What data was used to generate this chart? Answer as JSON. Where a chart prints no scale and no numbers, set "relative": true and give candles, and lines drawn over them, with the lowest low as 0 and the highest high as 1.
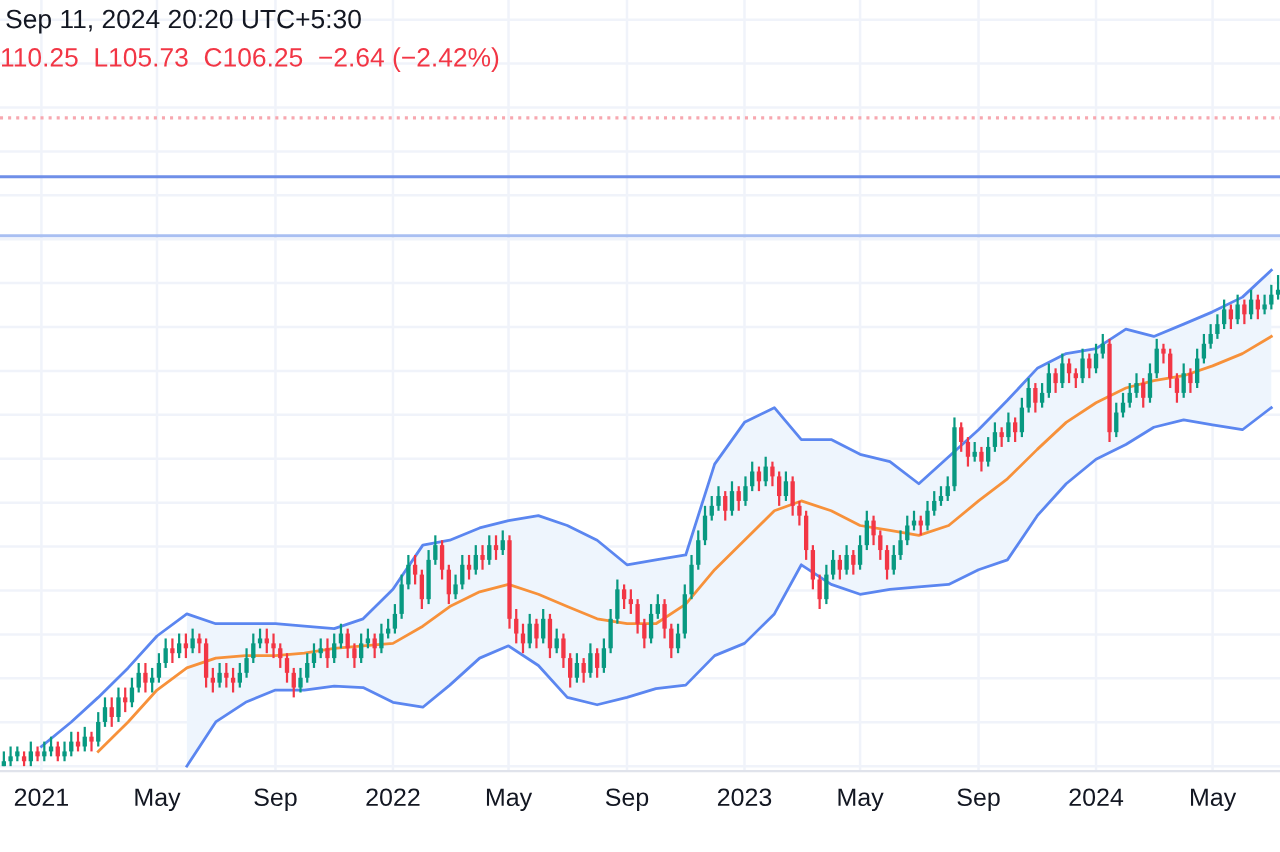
{
  "chart_data": {
    "type": "candlestick",
    "relative": true,
    "annotations": [
      "Sep 11, 2024 20:20 UTC+5:30",
      "110.25  L105.73  C106.25  −2.64 (−2.42%)"
    ],
    "x": [
      "2020-11-23",
      "2020-11-30",
      "2020-12-07",
      "2020-12-14",
      "2020-12-21",
      "2020-12-28",
      "2021-01-04",
      "2021-01-11",
      "2021-01-18",
      "2021-01-25",
      "2021-02-01",
      "2021-02-08",
      "2021-02-15",
      "2021-02-22",
      "2021-03-01",
      "2021-03-08",
      "2021-03-15",
      "2021-03-22",
      "2021-03-29",
      "2021-04-05",
      "2021-04-12",
      "2021-04-19",
      "2021-04-26",
      "2021-05-03",
      "2021-05-10",
      "2021-05-17",
      "2021-05-24",
      "2021-05-31",
      "2021-06-07",
      "2021-06-14",
      "2021-06-21",
      "2021-06-28",
      "2021-07-05",
      "2021-07-12",
      "2021-07-19",
      "2021-07-26",
      "2021-08-02",
      "2021-08-09",
      "2021-08-16",
      "2021-08-23",
      "2021-08-30",
      "2021-09-06",
      "2021-09-13",
      "2021-09-20",
      "2021-09-27",
      "2021-10-04",
      "2021-10-11",
      "2021-10-18",
      "2021-10-25",
      "2021-11-01",
      "2021-11-08",
      "2021-11-15",
      "2021-11-22",
      "2021-11-29",
      "2021-12-06",
      "2021-12-13",
      "2021-12-20",
      "2021-12-27",
      "2022-01-03",
      "2022-01-10",
      "2022-01-17",
      "2022-01-24",
      "2022-01-31",
      "2022-02-07",
      "2022-02-14",
      "2022-02-21",
      "2022-02-28",
      "2022-03-07",
      "2022-03-14",
      "2022-03-21",
      "2022-03-28",
      "2022-04-04",
      "2022-04-11",
      "2022-04-18",
      "2022-04-25",
      "2022-05-02",
      "2022-05-09",
      "2022-05-16",
      "2022-05-23",
      "2022-05-30",
      "2022-06-06",
      "2022-06-13",
      "2022-06-20",
      "2022-06-27",
      "2022-07-04",
      "2022-07-11",
      "2022-07-18",
      "2022-07-25",
      "2022-08-01",
      "2022-08-08",
      "2022-08-15",
      "2022-08-22",
      "2022-08-29",
      "2022-09-05",
      "2022-09-12",
      "2022-09-19",
      "2022-09-26",
      "2022-10-03",
      "2022-10-10",
      "2022-10-17",
      "2022-10-24",
      "2022-10-31",
      "2022-11-07",
      "2022-11-14",
      "2022-11-21",
      "2022-11-28",
      "2022-12-05",
      "2022-12-12",
      "2022-12-19",
      "2022-12-26",
      "2023-01-02",
      "2023-01-09",
      "2023-01-16",
      "2023-01-23",
      "2023-01-30",
      "2023-02-06",
      "2023-02-13",
      "2023-02-20",
      "2023-02-27",
      "2023-03-06",
      "2023-03-13",
      "2023-03-20",
      "2023-03-27",
      "2023-04-03",
      "2023-04-10",
      "2023-04-17",
      "2023-04-24",
      "2023-05-01",
      "2023-05-08",
      "2023-05-15",
      "2023-05-22",
      "2023-05-29",
      "2023-06-05",
      "2023-06-12",
      "2023-06-19",
      "2023-06-26",
      "2023-07-03",
      "2023-07-10",
      "2023-07-17",
      "2023-07-24",
      "2023-07-31",
      "2023-08-07",
      "2023-08-14",
      "2023-08-21",
      "2023-08-28",
      "2023-09-04",
      "2023-09-11",
      "2023-09-18",
      "2023-09-25",
      "2023-10-02",
      "2023-10-09",
      "2023-10-16",
      "2023-10-23",
      "2023-10-30",
      "2023-11-06",
      "2023-11-13",
      "2023-11-20",
      "2023-11-27",
      "2023-12-04",
      "2023-12-11",
      "2023-12-18",
      "2023-12-25",
      "2024-01-01",
      "2024-01-08",
      "2024-01-15",
      "2024-01-22",
      "2024-01-29",
      "2024-02-05",
      "2024-02-12",
      "2024-02-19",
      "2024-02-26",
      "2024-03-04",
      "2024-03-11",
      "2024-03-18",
      "2024-03-25",
      "2024-04-01",
      "2024-04-08",
      "2024-04-15",
      "2024-04-22",
      "2024-04-29",
      "2024-05-06",
      "2024-05-13",
      "2024-05-20",
      "2024-05-27",
      "2024-06-03",
      "2024-06-10",
      "2024-06-17",
      "2024-06-24",
      "2024-07-01",
      "2024-07-08"
    ],
    "ohlc": [
      [
        0,
        0.03,
        0,
        0.01
      ],
      [
        0.01,
        0.04,
        0,
        0.02
      ],
      [
        0.02,
        0.04,
        0.01,
        0.03
      ],
      [
        0.02,
        0.03,
        0,
        0.01
      ],
      [
        0.01,
        0.05,
        0,
        0.03
      ],
      [
        0.03,
        0.04,
        0.01,
        0.02
      ],
      [
        0.02,
        0.05,
        0.01,
        0.03
      ],
      [
        0.03,
        0.06,
        0.02,
        0.04
      ],
      [
        0.04,
        0.05,
        0.01,
        0.02
      ],
      [
        0.02,
        0.05,
        0.01,
        0.03
      ],
      [
        0.03,
        0.07,
        0.02,
        0.05
      ],
      [
        0.05,
        0.07,
        0.03,
        0.04
      ],
      [
        0.04,
        0.08,
        0.03,
        0.06
      ],
      [
        0.06,
        0.07,
        0.03,
        0.05
      ],
      [
        0.05,
        0.11,
        0.04,
        0.09
      ],
      [
        0.09,
        0.14,
        0.08,
        0.12
      ],
      [
        0.12,
        0.14,
        0.08,
        0.1
      ],
      [
        0.1,
        0.16,
        0.09,
        0.14
      ],
      [
        0.14,
        0.16,
        0.11,
        0.13
      ],
      [
        0.13,
        0.18,
        0.12,
        0.16
      ],
      [
        0.16,
        0.21,
        0.15,
        0.19
      ],
      [
        0.19,
        0.21,
        0.15,
        0.17
      ],
      [
        0.17,
        0.2,
        0.15,
        0.18
      ],
      [
        0.18,
        0.23,
        0.17,
        0.21
      ],
      [
        0.21,
        0.26,
        0.2,
        0.24
      ],
      [
        0.24,
        0.26,
        0.21,
        0.23
      ],
      [
        0.23,
        0.27,
        0.22,
        0.25
      ],
      [
        0.25,
        0.27,
        0.22,
        0.24
      ],
      [
        0.24,
        0.28,
        0.23,
        0.26
      ],
      [
        0.26,
        0.27,
        0.23,
        0.25
      ],
      [
        0.25,
        0.26,
        0.16,
        0.18
      ],
      [
        0.18,
        0.2,
        0.15,
        0.17
      ],
      [
        0.17,
        0.21,
        0.16,
        0.19
      ],
      [
        0.19,
        0.21,
        0.16,
        0.18
      ],
      [
        0.18,
        0.2,
        0.15,
        0.17
      ],
      [
        0.17,
        0.21,
        0.16,
        0.19
      ],
      [
        0.19,
        0.24,
        0.18,
        0.22
      ],
      [
        0.22,
        0.27,
        0.21,
        0.25
      ],
      [
        0.25,
        0.28,
        0.24,
        0.26
      ],
      [
        0.26,
        0.28,
        0.23,
        0.25
      ],
      [
        0.25,
        0.27,
        0.22,
        0.24
      ],
      [
        0.24,
        0.25,
        0.2,
        0.22
      ],
      [
        0.22,
        0.23,
        0.17,
        0.19
      ],
      [
        0.19,
        0.2,
        0.14,
        0.16
      ],
      [
        0.16,
        0.2,
        0.15,
        0.18
      ],
      [
        0.18,
        0.23,
        0.17,
        0.21
      ],
      [
        0.21,
        0.25,
        0.2,
        0.23
      ],
      [
        0.23,
        0.26,
        0.22,
        0.24
      ],
      [
        0.24,
        0.26,
        0.2,
        0.22
      ],
      [
        0.22,
        0.27,
        0.21,
        0.25
      ],
      [
        0.25,
        0.29,
        0.24,
        0.27
      ],
      [
        0.27,
        0.28,
        0.22,
        0.24
      ],
      [
        0.24,
        0.25,
        0.2,
        0.22
      ],
      [
        0.22,
        0.27,
        0.21,
        0.25
      ],
      [
        0.25,
        0.28,
        0.24,
        0.26
      ],
      [
        0.26,
        0.27,
        0.22,
        0.24
      ],
      [
        0.24,
        0.29,
        0.23,
        0.27
      ],
      [
        0.27,
        0.3,
        0.26,
        0.28
      ],
      [
        0.28,
        0.33,
        0.27,
        0.31
      ],
      [
        0.31,
        0.39,
        0.3,
        0.37
      ],
      [
        0.37,
        0.43,
        0.36,
        0.41
      ],
      [
        0.41,
        0.43,
        0.37,
        0.39
      ],
      [
        0.39,
        0.4,
        0.32,
        0.34
      ],
      [
        0.34,
        0.44,
        0.33,
        0.42
      ],
      [
        0.42,
        0.47,
        0.41,
        0.45
      ],
      [
        0.45,
        0.46,
        0.38,
        0.4
      ],
      [
        0.4,
        0.41,
        0.33,
        0.35
      ],
      [
        0.35,
        0.39,
        0.34,
        0.37
      ],
      [
        0.37,
        0.43,
        0.36,
        0.41
      ],
      [
        0.41,
        0.43,
        0.38,
        0.4
      ],
      [
        0.4,
        0.45,
        0.39,
        0.43
      ],
      [
        0.43,
        0.45,
        0.4,
        0.42
      ],
      [
        0.42,
        0.47,
        0.41,
        0.45
      ],
      [
        0.45,
        0.47,
        0.42,
        0.44
      ],
      [
        0.44,
        0.48,
        0.43,
        0.46
      ],
      [
        0.46,
        0.47,
        0.28,
        0.3
      ],
      [
        0.3,
        0.32,
        0.25,
        0.27
      ],
      [
        0.27,
        0.29,
        0.23,
        0.25
      ],
      [
        0.25,
        0.31,
        0.24,
        0.29
      ],
      [
        0.29,
        0.3,
        0.24,
        0.26
      ],
      [
        0.26,
        0.32,
        0.25,
        0.3
      ],
      [
        0.3,
        0.31,
        0.22,
        0.24
      ],
      [
        0.24,
        0.28,
        0.23,
        0.26
      ],
      [
        0.26,
        0.27,
        0.2,
        0.22
      ],
      [
        0.22,
        0.23,
        0.16,
        0.18
      ],
      [
        0.18,
        0.23,
        0.17,
        0.21
      ],
      [
        0.21,
        0.22,
        0.17,
        0.19
      ],
      [
        0.19,
        0.25,
        0.18,
        0.23
      ],
      [
        0.23,
        0.24,
        0.18,
        0.2
      ],
      [
        0.2,
        0.26,
        0.19,
        0.24
      ],
      [
        0.24,
        0.32,
        0.23,
        0.3
      ],
      [
        0.3,
        0.38,
        0.29,
        0.36
      ],
      [
        0.36,
        0.37,
        0.32,
        0.34
      ],
      [
        0.34,
        0.36,
        0.31,
        0.33
      ],
      [
        0.33,
        0.34,
        0.27,
        0.29
      ],
      [
        0.29,
        0.3,
        0.24,
        0.26
      ],
      [
        0.26,
        0.33,
        0.25,
        0.31
      ],
      [
        0.31,
        0.35,
        0.3,
        0.33
      ],
      [
        0.33,
        0.34,
        0.26,
        0.28
      ],
      [
        0.28,
        0.29,
        0.22,
        0.24
      ],
      [
        0.24,
        0.29,
        0.23,
        0.27
      ],
      [
        0.27,
        0.37,
        0.26,
        0.35
      ],
      [
        0.35,
        0.43,
        0.34,
        0.41
      ],
      [
        0.41,
        0.48,
        0.4,
        0.46
      ],
      [
        0.46,
        0.53,
        0.45,
        0.51
      ],
      [
        0.51,
        0.55,
        0.5,
        0.53
      ],
      [
        0.53,
        0.57,
        0.52,
        0.55
      ],
      [
        0.55,
        0.56,
        0.5,
        0.52
      ],
      [
        0.52,
        0.58,
        0.51,
        0.56
      ],
      [
        0.56,
        0.57,
        0.52,
        0.54
      ],
      [
        0.54,
        0.59,
        0.53,
        0.57
      ],
      [
        0.57,
        0.62,
        0.56,
        0.6
      ],
      [
        0.6,
        0.61,
        0.56,
        0.58
      ],
      [
        0.58,
        0.63,
        0.57,
        0.61
      ],
      [
        0.61,
        0.62,
        0.57,
        0.59
      ],
      [
        0.59,
        0.6,
        0.53,
        0.55
      ],
      [
        0.55,
        0.6,
        0.54,
        0.58
      ],
      [
        0.58,
        0.59,
        0.51,
        0.53
      ],
      [
        0.53,
        0.54,
        0.49,
        0.51
      ],
      [
        0.51,
        0.52,
        0.42,
        0.44
      ],
      [
        0.44,
        0.45,
        0.36,
        0.38
      ],
      [
        0.38,
        0.39,
        0.32,
        0.34
      ],
      [
        0.34,
        0.41,
        0.33,
        0.39
      ],
      [
        0.39,
        0.44,
        0.38,
        0.42
      ],
      [
        0.42,
        0.43,
        0.38,
        0.4
      ],
      [
        0.4,
        0.45,
        0.39,
        0.43
      ],
      [
        0.43,
        0.44,
        0.39,
        0.41
      ],
      [
        0.41,
        0.47,
        0.4,
        0.45
      ],
      [
        0.45,
        0.52,
        0.44,
        0.5
      ],
      [
        0.5,
        0.51,
        0.45,
        0.47
      ],
      [
        0.47,
        0.48,
        0.42,
        0.44
      ],
      [
        0.44,
        0.45,
        0.38,
        0.4
      ],
      [
        0.4,
        0.45,
        0.39,
        0.43
      ],
      [
        0.43,
        0.48,
        0.42,
        0.46
      ],
      [
        0.46,
        0.51,
        0.45,
        0.49
      ],
      [
        0.49,
        0.52,
        0.48,
        0.5
      ],
      [
        0.5,
        0.51,
        0.47,
        0.49
      ],
      [
        0.49,
        0.54,
        0.48,
        0.52
      ],
      [
        0.52,
        0.56,
        0.51,
        0.54
      ],
      [
        0.54,
        0.57,
        0.53,
        0.55
      ],
      [
        0.55,
        0.59,
        0.54,
        0.57
      ],
      [
        0.57,
        0.71,
        0.56,
        0.69
      ],
      [
        0.69,
        0.7,
        0.64,
        0.66
      ],
      [
        0.66,
        0.67,
        0.61,
        0.63
      ],
      [
        0.63,
        0.66,
        0.62,
        0.64
      ],
      [
        0.64,
        0.65,
        0.6,
        0.62
      ],
      [
        0.62,
        0.67,
        0.61,
        0.65
      ],
      [
        0.65,
        0.7,
        0.64,
        0.68
      ],
      [
        0.68,
        0.69,
        0.65,
        0.67
      ],
      [
        0.67,
        0.72,
        0.66,
        0.7
      ],
      [
        0.7,
        0.71,
        0.66,
        0.68
      ],
      [
        0.68,
        0.75,
        0.67,
        0.73
      ],
      [
        0.73,
        0.79,
        0.72,
        0.77
      ],
      [
        0.77,
        0.78,
        0.72,
        0.74
      ],
      [
        0.74,
        0.78,
        0.73,
        0.76
      ],
      [
        0.76,
        0.82,
        0.75,
        0.8
      ],
      [
        0.8,
        0.81,
        0.76,
        0.78
      ],
      [
        0.78,
        0.84,
        0.77,
        0.82
      ],
      [
        0.82,
        0.83,
        0.78,
        0.8
      ],
      [
        0.8,
        0.81,
        0.77,
        0.79
      ],
      [
        0.79,
        0.85,
        0.78,
        0.83
      ],
      [
        0.83,
        0.84,
        0.79,
        0.81
      ],
      [
        0.81,
        0.86,
        0.8,
        0.84
      ],
      [
        0.84,
        0.88,
        0.83,
        0.86
      ],
      [
        0.86,
        0.87,
        0.66,
        0.68
      ],
      [
        0.68,
        0.74,
        0.67,
        0.72
      ],
      [
        0.72,
        0.76,
        0.71,
        0.74
      ],
      [
        0.74,
        0.78,
        0.73,
        0.76
      ],
      [
        0.76,
        0.8,
        0.75,
        0.78
      ],
      [
        0.78,
        0.79,
        0.73,
        0.75
      ],
      [
        0.75,
        0.82,
        0.74,
        0.8
      ],
      [
        0.8,
        0.87,
        0.79,
        0.85
      ],
      [
        0.85,
        0.86,
        0.82,
        0.84
      ],
      [
        0.84,
        0.85,
        0.77,
        0.79
      ],
      [
        0.79,
        0.8,
        0.74,
        0.76
      ],
      [
        0.76,
        0.82,
        0.75,
        0.8
      ],
      [
        0.8,
        0.81,
        0.76,
        0.78
      ],
      [
        0.78,
        0.85,
        0.77,
        0.83
      ],
      [
        0.83,
        0.88,
        0.82,
        0.86
      ],
      [
        0.86,
        0.9,
        0.85,
        0.88
      ],
      [
        0.88,
        0.92,
        0.87,
        0.9
      ],
      [
        0.9,
        0.95,
        0.89,
        0.93
      ],
      [
        0.93,
        0.94,
        0.89,
        0.91
      ],
      [
        0.91,
        0.96,
        0.9,
        0.94
      ],
      [
        0.94,
        0.95,
        0.9,
        0.92
      ],
      [
        0.92,
        0.97,
        0.91,
        0.95
      ],
      [
        0.95,
        0.96,
        0.91,
        0.93
      ],
      [
        0.93,
        0.96,
        0.92,
        0.94
      ],
      [
        0.94,
        0.98,
        0.93,
        0.96
      ],
      [
        0.96,
        1.0,
        0.95,
        0.97
      ]
    ],
    "series": [
      {
        "type": "line",
        "color": "#5b86f0",
        "x": [
          "2021-01-01",
          "2021-02-01",
          "2021-03-01",
          "2021-04-01",
          "2021-05-01",
          "2021-06-01",
          "2021-07-01",
          "2021-08-01",
          "2021-09-01",
          "2021-10-01",
          "2021-11-01",
          "2021-12-01",
          "2022-01-01",
          "2022-02-01",
          "2022-03-01",
          "2022-04-01",
          "2022-05-01",
          "2022-06-01",
          "2022-07-01",
          "2022-08-01",
          "2022-09-01",
          "2022-10-01",
          "2022-11-01",
          "2022-12-01",
          "2023-01-01",
          "2023-02-01",
          "2023-03-01",
          "2023-04-01",
          "2023-05-01",
          "2023-06-01",
          "2023-07-01",
          "2023-08-01",
          "2023-09-01",
          "2023-10-01",
          "2023-11-01",
          "2023-12-01",
          "2024-01-01",
          "2024-02-01",
          "2024-03-01",
          "2024-04-01",
          "2024-05-01",
          "2024-06-01",
          "2024-07-01"
        ],
        "values": [
          0.04,
          0.09,
          0.14,
          0.2,
          0.265,
          0.31,
          0.29,
          0.29,
          0.29,
          0.285,
          0.28,
          0.3,
          0.36,
          0.45,
          0.46,
          0.485,
          0.5,
          0.51,
          0.49,
          0.46,
          0.41,
          0.42,
          0.43,
          0.615,
          0.7,
          0.73,
          0.665,
          0.665,
          0.635,
          0.62,
          0.575,
          0.63,
          0.685,
          0.745,
          0.81,
          0.84,
          0.85,
          0.89,
          0.875,
          0.9,
          0.925,
          0.955,
          1.01
        ]
      },
      {
        "type": "line",
        "color": "#5b86f0",
        "x": [
          "2021-06-01",
          "2021-07-01",
          "2021-08-01",
          "2021-09-01",
          "2021-10-01",
          "2021-11-01",
          "2021-12-01",
          "2022-01-01",
          "2022-02-01",
          "2022-03-01",
          "2022-04-01",
          "2022-05-01",
          "2022-06-01",
          "2022-07-01",
          "2022-08-01",
          "2022-09-01",
          "2022-10-01",
          "2022-11-01",
          "2022-12-01",
          "2023-01-01",
          "2023-02-01",
          "2023-03-01",
          "2023-04-01",
          "2023-05-01",
          "2023-06-01",
          "2023-07-01",
          "2023-08-01",
          "2023-09-01",
          "2023-10-01",
          "2023-11-01",
          "2023-12-01",
          "2024-01-01",
          "2024-02-01",
          "2024-03-01",
          "2024-04-01",
          "2024-05-01",
          "2024-06-01",
          "2024-07-01"
        ],
        "values": [
          0.0,
          0.09,
          0.13,
          0.155,
          0.155,
          0.163,
          0.16,
          0.13,
          0.12,
          0.165,
          0.22,
          0.245,
          0.205,
          0.14,
          0.125,
          0.14,
          0.158,
          0.165,
          0.225,
          0.25,
          0.31,
          0.41,
          0.37,
          0.35,
          0.36,
          0.365,
          0.37,
          0.4,
          0.42,
          0.51,
          0.575,
          0.625,
          0.655,
          0.69,
          0.705,
          0.695,
          0.685,
          0.73
        ]
      },
      {
        "type": "line",
        "color": "#f7913a",
        "x": [
          "2021-03-01",
          "2021-04-01",
          "2021-05-01",
          "2021-06-01",
          "2021-07-01",
          "2021-08-01",
          "2021-09-01",
          "2021-10-01",
          "2021-11-01",
          "2021-12-01",
          "2022-01-01",
          "2022-02-01",
          "2022-03-01",
          "2022-04-01",
          "2022-05-01",
          "2022-06-01",
          "2022-07-01",
          "2022-08-01",
          "2022-09-01",
          "2022-10-01",
          "2022-11-01",
          "2022-12-01",
          "2023-01-01",
          "2023-02-01",
          "2023-03-01",
          "2023-04-01",
          "2023-05-01",
          "2023-06-01",
          "2023-07-01",
          "2023-08-01",
          "2023-09-01",
          "2023-10-01",
          "2023-11-01",
          "2023-12-01",
          "2024-01-01",
          "2024-02-01",
          "2024-03-01",
          "2024-04-01",
          "2024-05-01",
          "2024-06-01",
          "2024-07-01"
        ],
        "values": [
          0.03,
          0.09,
          0.155,
          0.2,
          0.22,
          0.225,
          0.225,
          0.23,
          0.24,
          0.245,
          0.25,
          0.285,
          0.325,
          0.355,
          0.37,
          0.35,
          0.325,
          0.3,
          0.29,
          0.29,
          0.33,
          0.4,
          0.46,
          0.52,
          0.54,
          0.52,
          0.49,
          0.48,
          0.47,
          0.49,
          0.54,
          0.585,
          0.645,
          0.7,
          0.74,
          0.77,
          0.785,
          0.795,
          0.815,
          0.84,
          0.875
        ],
        "upper": [
          null,
          null,
          null,
          0.31,
          0.29,
          0.29,
          0.29,
          0.285,
          0.28,
          0.3,
          0.36,
          0.45,
          0.46,
          0.485,
          0.5,
          0.51,
          0.49,
          0.46,
          0.41,
          0.42,
          0.43,
          0.615,
          0.7,
          0.73,
          0.665,
          0.665,
          0.635,
          0.62,
          0.575,
          0.63,
          0.685,
          0.745,
          0.81,
          0.84,
          0.85,
          0.89,
          0.875,
          0.9,
          0.925,
          0.955,
          1.01
        ],
        "lower": [
          null,
          null,
          null,
          0.0,
          0.09,
          0.13,
          0.155,
          0.155,
          0.163,
          0.16,
          0.13,
          0.12,
          0.165,
          0.22,
          0.245,
          0.205,
          0.14,
          0.125,
          0.14,
          0.158,
          0.165,
          0.225,
          0.25,
          0.31,
          0.41,
          0.37,
          0.35,
          0.36,
          0.365,
          0.37,
          0.4,
          0.42,
          0.51,
          0.575,
          0.625,
          0.655,
          0.69,
          0.705,
          0.695,
          0.685,
          0.73
        ]
      }
    ],
    "ref_lines": [
      {
        "axis": "y",
        "value": 1.32,
        "color": "#f7a8b0",
        "line_style": "dotted"
      },
      {
        "axis": "y",
        "value": 1.2,
        "color": "#6f8fe8",
        "line_style": "solid"
      },
      {
        "axis": "y",
        "value": 1.08,
        "color": "#a9bff2",
        "line_style": "solid"
      }
    ],
    "xlim": [
      "2020-11-19",
      "2024-07-10"
    ],
    "xticks": [
      {
        "value": "2021-01-01",
        "label": "2021"
      },
      {
        "value": "2021-05-01",
        "label": "May"
      },
      {
        "value": "2021-09-01",
        "label": "Sep"
      },
      {
        "value": "2022-01-01",
        "label": "2022"
      },
      {
        "value": "2022-05-01",
        "label": "May"
      },
      {
        "value": "2022-09-01",
        "label": "Sep"
      },
      {
        "value": "2023-01-01",
        "label": "2023"
      },
      {
        "value": "2023-05-01",
        "label": "May"
      },
      {
        "value": "2023-09-01",
        "label": "Sep"
      },
      {
        "value": "2024-01-01",
        "label": "2024"
      },
      {
        "value": "2024-05-01",
        "label": "May"
      }
    ],
    "tick_labels": "x",
    "grid": true,
    "legend": false
  }
}
